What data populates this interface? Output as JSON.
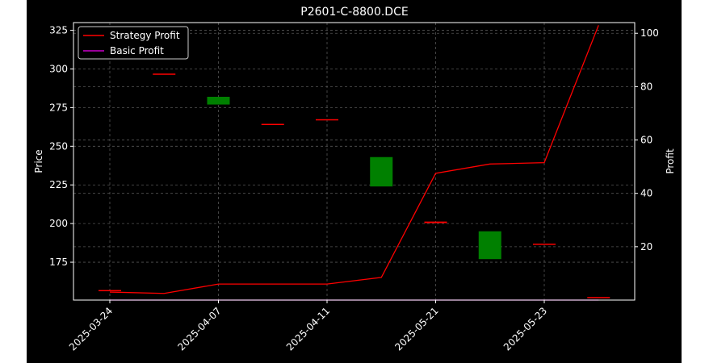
{
  "chart_data": {
    "type": "candlestick+line",
    "title": "P2601-C-8800.DCE",
    "categories": [
      "2025-03-24",
      "2025-04-07",
      "2025-04-11",
      "2025-05-21",
      "2025-05-23"
    ],
    "left_axis": {
      "label": "Price",
      "ylim": [
        150.5,
        330
      ],
      "ticks": [
        175,
        200,
        225,
        250,
        275,
        300,
        325
      ]
    },
    "right_axis": {
      "label": "Profit",
      "ylim": [
        0,
        104
      ],
      "ticks": [
        20,
        40,
        60,
        80,
        100
      ]
    },
    "grid": true,
    "legend_position": "top-left",
    "candles": [
      {
        "x": 0,
        "open": 157,
        "close": 157,
        "color": "red"
      },
      {
        "x": 0.5,
        "open": 297,
        "close": 297,
        "color": "red"
      },
      {
        "x": 1,
        "open": 277,
        "close": 282,
        "color": "green"
      },
      {
        "x": 1.5,
        "open": 264.5,
        "close": 264.5,
        "color": "red"
      },
      {
        "x": 2,
        "open": 267.5,
        "close": 267.5,
        "color": "red"
      },
      {
        "x": 2.5,
        "open": 224,
        "close": 243,
        "color": "green"
      },
      {
        "x": 3,
        "open": 200.3,
        "close": 201.3,
        "color": "red"
      },
      {
        "x": 3.5,
        "open": 177,
        "close": 195,
        "color": "green"
      },
      {
        "x": 4,
        "open": 187,
        "close": 187,
        "color": "red"
      },
      {
        "x": 4.5,
        "open": 152.5,
        "close": 152.5,
        "color": "red"
      }
    ],
    "series": [
      {
        "name": "Strategy Profit",
        "color": "#ff0000",
        "x": [
          0,
          0.5,
          1,
          1.5,
          2,
          2.5,
          3,
          3.5,
          4,
          4.5
        ],
        "values": [
          3,
          2.5,
          6,
          6,
          6,
          8.5,
          47.5,
          51,
          51.5,
          103
        ]
      },
      {
        "name": "Basic Profit",
        "color": "#cc00cc",
        "x": [
          0,
          0.5,
          1,
          1.5,
          2,
          2.5,
          3,
          3.5,
          4,
          4.5
        ],
        "values": [
          0,
          0,
          0,
          0,
          0,
          0,
          0,
          0,
          0,
          0
        ]
      }
    ]
  },
  "colors": {
    "background": "#000000",
    "axes": "#ffffff",
    "grid": "#555555",
    "candle_up": "#008000",
    "candle_down": "#ff0000"
  }
}
